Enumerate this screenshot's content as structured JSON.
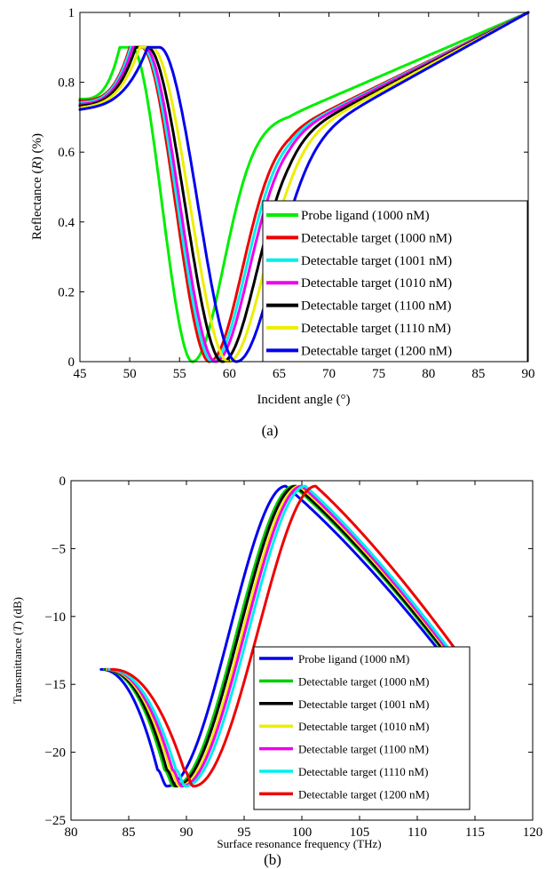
{
  "chart_data": [
    {
      "type": "line",
      "panel_label": "(a)",
      "xlabel": "Incident angle (°)",
      "ylabel_prefix": "Reflectance (",
      "ylabel_italic": "R",
      "ylabel_suffix": ") (%)",
      "xlim": [
        45,
        90
      ],
      "ylim": [
        0,
        1
      ],
      "xticks": [
        45,
        50,
        55,
        60,
        65,
        70,
        75,
        80,
        85,
        90
      ],
      "yticks": [
        0,
        0.2,
        0.4,
        0.6,
        0.8,
        1
      ],
      "ytick_labels": [
        "0",
        "0.2",
        "0.4",
        "0.6",
        "0.8",
        "1"
      ],
      "legend_position": "lower-right",
      "series": [
        {
          "name": "Probe ligand (1000 nM)",
          "color": "#00ee00",
          "peak_x": 49,
          "min_x": 56.3,
          "width": 3.9,
          "mid_y": 0.705
        },
        {
          "name": "Detectable target (1000 nM)",
          "color": "#ee0000",
          "peak_x": 50,
          "min_x": 58.0,
          "width": 4.1,
          "mid_y": 0.665
        },
        {
          "name": "Detectable target (1001 nM)",
          "color": "#00eeee",
          "peak_x": 50.1,
          "min_x": 58.3,
          "width": 4.15,
          "mid_y": 0.66
        },
        {
          "name": "Detectable target (1010 nM)",
          "color": "#ee00ee",
          "peak_x": 50.3,
          "min_x": 58.6,
          "width": 4.2,
          "mid_y": 0.655
        },
        {
          "name": "Detectable target (1100 nM)",
          "color": "#000000",
          "peak_x": 50.6,
          "min_x": 59.3,
          "width": 4.3,
          "mid_y": 0.645
        },
        {
          "name": "Detectable target (1110 nM)",
          "color": "#eeee00",
          "peak_x": 51,
          "min_x": 59.9,
          "width": 4.4,
          "mid_y": 0.635
        },
        {
          "name": "Detectable target (1200 nM)",
          "color": "#0000ee",
          "peak_x": 51.8,
          "min_x": 60.7,
          "width": 4.6,
          "mid_y": 0.62
        }
      ]
    },
    {
      "type": "line",
      "panel_label": "(b)",
      "xlabel": "Surface resonance frequency (THz)",
      "ylabel_prefix": "Transmittance (",
      "ylabel_italic": "T",
      "ylabel_suffix": ") (dB)",
      "xlim": [
        80,
        120
      ],
      "ylim": [
        -25,
        0
      ],
      "xticks": [
        80,
        85,
        90,
        95,
        100,
        105,
        110,
        115,
        120
      ],
      "yticks": [
        -25,
        -20,
        -15,
        -10,
        -5,
        0
      ],
      "ytick_labels": [
        "−25",
        "−20",
        "−15",
        "−10",
        "−5",
        "0"
      ],
      "legend_position": "lower-right",
      "series": [
        {
          "name": "Probe ligand (1000 nM)",
          "color": "#0000ee",
          "start_x": 82.6,
          "min_x": 88.3,
          "peak_x": 98.6,
          "end_x": 113.0
        },
        {
          "name": "Detectable target (1000 nM)",
          "color": "#00cc00",
          "start_x": 82.9,
          "min_x": 88.9,
          "peak_x": 99.3,
          "end_x": 113.3
        },
        {
          "name": "Detectable target (1001 nM)",
          "color": "#000000",
          "start_x": 83.0,
          "min_x": 89.1,
          "peak_x": 99.5,
          "end_x": 113.4
        },
        {
          "name": "Detectable target (1010 nM)",
          "color": "#eeee00",
          "start_x": 83.1,
          "min_x": 89.4,
          "peak_x": 99.8,
          "end_x": 113.6
        },
        {
          "name": "Detectable target (1100 nM)",
          "color": "#ee00ee",
          "start_x": 83.2,
          "min_x": 89.6,
          "peak_x": 100.0,
          "end_x": 113.7
        },
        {
          "name": "Detectable target (1110 nM)",
          "color": "#00eeee",
          "start_x": 83.3,
          "min_x": 89.9,
          "peak_x": 100.3,
          "end_x": 113.9
        },
        {
          "name": "Detectable target (1200 nM)",
          "color": "#ee0000",
          "start_x": 83.5,
          "min_x": 90.6,
          "peak_x": 101.2,
          "end_x": 114.4
        }
      ]
    }
  ]
}
